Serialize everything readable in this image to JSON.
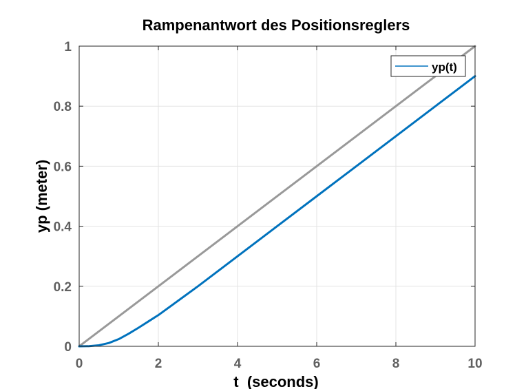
{
  "chart_data": {
    "type": "line",
    "title": "Rampenantwort des Positionsreglers",
    "xlabel": "t  (seconds)",
    "ylabel": "yp (meter)",
    "xlim": [
      0,
      10
    ],
    "ylim": [
      0,
      1
    ],
    "xticks": [
      "0",
      "2",
      "4",
      "6",
      "8",
      "10"
    ],
    "yticks": [
      "0",
      "0.2",
      "0.4",
      "0.6",
      "0.8",
      "1"
    ],
    "grid": true,
    "legend_position": "top-right",
    "series": [
      {
        "color": "#999999",
        "x": [
          0,
          10
        ],
        "y": [
          0,
          1
        ]
      },
      {
        "name": "yp(t)",
        "color": "#0072bd",
        "x": [
          0,
          0.25,
          0.5,
          0.75,
          1.0,
          1.25,
          1.5,
          1.75,
          2.0,
          2.5,
          3,
          4,
          5,
          6,
          7,
          8,
          9,
          10
        ],
        "y": [
          0,
          0.0005,
          0.0035,
          0.011,
          0.024,
          0.042,
          0.062,
          0.083,
          0.104,
          0.152,
          0.2,
          0.3,
          0.4,
          0.5,
          0.6,
          0.7,
          0.8,
          0.9
        ]
      }
    ]
  }
}
